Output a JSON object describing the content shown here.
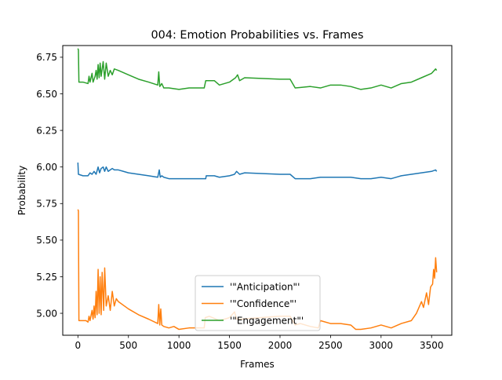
{
  "chart_data": {
    "type": "line",
    "title": "004: Emotion Probabilities vs. Frames",
    "xlabel": "Frames",
    "ylabel": "Probability",
    "xlim": [
      -150,
      3700
    ],
    "ylim": [
      4.85,
      6.83
    ],
    "x_ticks": [
      0,
      500,
      1000,
      1500,
      2000,
      2500,
      3000,
      3500
    ],
    "x_tick_labels": [
      "0",
      "500",
      "1000",
      "1500",
      "2000",
      "2500",
      "3000",
      "3500"
    ],
    "y_ticks": [
      5.0,
      5.25,
      5.5,
      5.75,
      6.0,
      6.25,
      6.5,
      6.75
    ],
    "y_tick_labels": [
      "5.00",
      "5.25",
      "5.50",
      "5.75",
      "6.00",
      "6.25",
      "6.50",
      "6.75"
    ],
    "grid": false,
    "legend": {
      "position": "lower center"
    },
    "series": [
      {
        "name": "'\"Anticipation\"'",
        "color": "#1f77b4",
        "points": [
          [
            0,
            6.03
          ],
          [
            5,
            5.95
          ],
          [
            50,
            5.94
          ],
          [
            100,
            5.94
          ],
          [
            120,
            5.96
          ],
          [
            140,
            5.95
          ],
          [
            160,
            5.97
          ],
          [
            180,
            5.95
          ],
          [
            200,
            6.0
          ],
          [
            215,
            5.96
          ],
          [
            230,
            5.99
          ],
          [
            250,
            6.0
          ],
          [
            265,
            5.97
          ],
          [
            280,
            6.0
          ],
          [
            300,
            5.97
          ],
          [
            320,
            5.98
          ],
          [
            340,
            5.99
          ],
          [
            360,
            5.98
          ],
          [
            400,
            5.98
          ],
          [
            450,
            5.97
          ],
          [
            500,
            5.96
          ],
          [
            600,
            5.95
          ],
          [
            700,
            5.94
          ],
          [
            790,
            5.93
          ],
          [
            805,
            5.98
          ],
          [
            815,
            5.93
          ],
          [
            830,
            5.94
          ],
          [
            850,
            5.93
          ],
          [
            900,
            5.92
          ],
          [
            1000,
            5.92
          ],
          [
            1100,
            5.92
          ],
          [
            1265,
            5.92
          ],
          [
            1270,
            5.94
          ],
          [
            1350,
            5.94
          ],
          [
            1400,
            5.93
          ],
          [
            1500,
            5.94
          ],
          [
            1550,
            5.95
          ],
          [
            1570,
            5.97
          ],
          [
            1600,
            5.95
          ],
          [
            1650,
            5.96
          ],
          [
            2000,
            5.95
          ],
          [
            2100,
            5.95
          ],
          [
            2150,
            5.92
          ],
          [
            2300,
            5.92
          ],
          [
            2400,
            5.93
          ],
          [
            2500,
            5.93
          ],
          [
            2700,
            5.93
          ],
          [
            2800,
            5.92
          ],
          [
            2900,
            5.92
          ],
          [
            3000,
            5.93
          ],
          [
            3100,
            5.92
          ],
          [
            3200,
            5.94
          ],
          [
            3300,
            5.95
          ],
          [
            3400,
            5.96
          ],
          [
            3500,
            5.97
          ],
          [
            3540,
            5.98
          ],
          [
            3550,
            5.97
          ]
        ]
      },
      {
        "name": "'\"Confidence\"'",
        "color": "#ff7f0e",
        "points": [
          [
            0,
            5.71
          ],
          [
            5,
            5.7
          ],
          [
            10,
            4.95
          ],
          [
            50,
            4.95
          ],
          [
            80,
            4.95
          ],
          [
            100,
            4.94
          ],
          [
            110,
            4.98
          ],
          [
            120,
            4.95
          ],
          [
            140,
            5.02
          ],
          [
            150,
            4.96
          ],
          [
            160,
            5.05
          ],
          [
            170,
            4.97
          ],
          [
            180,
            5.15
          ],
          [
            190,
            4.99
          ],
          [
            200,
            5.3
          ],
          [
            210,
            5.0
          ],
          [
            220,
            5.25
          ],
          [
            230,
            4.99
          ],
          [
            240,
            5.28
          ],
          [
            255,
            5.02
          ],
          [
            265,
            5.31
          ],
          [
            280,
            5.05
          ],
          [
            300,
            5.12
          ],
          [
            320,
            5.02
          ],
          [
            340,
            5.15
          ],
          [
            360,
            5.05
          ],
          [
            380,
            5.1
          ],
          [
            400,
            5.08
          ],
          [
            500,
            5.03
          ],
          [
            600,
            4.99
          ],
          [
            700,
            4.96
          ],
          [
            790,
            4.93
          ],
          [
            800,
            5.06
          ],
          [
            810,
            4.92
          ],
          [
            820,
            5.03
          ],
          [
            830,
            4.92
          ],
          [
            850,
            4.91
          ],
          [
            900,
            4.9
          ],
          [
            950,
            4.91
          ],
          [
            1000,
            4.89
          ],
          [
            1100,
            4.9
          ],
          [
            1250,
            4.9
          ],
          [
            1260,
            4.97
          ],
          [
            1300,
            4.98
          ],
          [
            1400,
            4.95
          ],
          [
            1500,
            4.97
          ],
          [
            1550,
            5.01
          ],
          [
            1570,
            4.96
          ],
          [
            1600,
            4.96
          ],
          [
            2000,
            4.98
          ],
          [
            2100,
            4.98
          ],
          [
            2150,
            4.92
          ],
          [
            2200,
            4.93
          ],
          [
            2300,
            4.91
          ],
          [
            2380,
            4.9
          ],
          [
            2400,
            4.95
          ],
          [
            2500,
            4.93
          ],
          [
            2600,
            4.93
          ],
          [
            2700,
            4.92
          ],
          [
            2750,
            4.89
          ],
          [
            2800,
            4.89
          ],
          [
            2900,
            4.9
          ],
          [
            3000,
            4.92
          ],
          [
            3100,
            4.9
          ],
          [
            3200,
            4.93
          ],
          [
            3300,
            4.95
          ],
          [
            3350,
            5.0
          ],
          [
            3400,
            5.08
          ],
          [
            3420,
            5.04
          ],
          [
            3450,
            5.14
          ],
          [
            3470,
            5.06
          ],
          [
            3490,
            5.18
          ],
          [
            3510,
            5.2
          ],
          [
            3520,
            5.3
          ],
          [
            3530,
            5.24
          ],
          [
            3540,
            5.38
          ],
          [
            3550,
            5.28
          ]
        ]
      },
      {
        "name": "'\"Engagement\"'",
        "color": "#2ca02c",
        "points": [
          [
            0,
            6.81
          ],
          [
            5,
            6.8
          ],
          [
            10,
            6.58
          ],
          [
            50,
            6.58
          ],
          [
            100,
            6.57
          ],
          [
            110,
            6.62
          ],
          [
            120,
            6.58
          ],
          [
            140,
            6.64
          ],
          [
            150,
            6.58
          ],
          [
            170,
            6.62
          ],
          [
            180,
            6.66
          ],
          [
            190,
            6.6
          ],
          [
            200,
            6.7
          ],
          [
            210,
            6.61
          ],
          [
            220,
            6.71
          ],
          [
            230,
            6.62
          ],
          [
            250,
            6.72
          ],
          [
            265,
            6.6
          ],
          [
            280,
            6.71
          ],
          [
            300,
            6.62
          ],
          [
            320,
            6.66
          ],
          [
            340,
            6.63
          ],
          [
            360,
            6.67
          ],
          [
            400,
            6.66
          ],
          [
            500,
            6.63
          ],
          [
            600,
            6.6
          ],
          [
            700,
            6.58
          ],
          [
            790,
            6.56
          ],
          [
            800,
            6.65
          ],
          [
            810,
            6.55
          ],
          [
            830,
            6.57
          ],
          [
            850,
            6.54
          ],
          [
            900,
            6.54
          ],
          [
            1000,
            6.53
          ],
          [
            1100,
            6.54
          ],
          [
            1250,
            6.54
          ],
          [
            1265,
            6.59
          ],
          [
            1350,
            6.59
          ],
          [
            1400,
            6.56
          ],
          [
            1500,
            6.58
          ],
          [
            1560,
            6.61
          ],
          [
            1580,
            6.63
          ],
          [
            1600,
            6.59
          ],
          [
            1650,
            6.61
          ],
          [
            2000,
            6.6
          ],
          [
            2100,
            6.6
          ],
          [
            2150,
            6.54
          ],
          [
            2300,
            6.55
          ],
          [
            2400,
            6.54
          ],
          [
            2500,
            6.56
          ],
          [
            2600,
            6.56
          ],
          [
            2700,
            6.55
          ],
          [
            2800,
            6.53
          ],
          [
            2900,
            6.54
          ],
          [
            3000,
            6.56
          ],
          [
            3100,
            6.54
          ],
          [
            3200,
            6.57
          ],
          [
            3300,
            6.58
          ],
          [
            3400,
            6.61
          ],
          [
            3500,
            6.64
          ],
          [
            3540,
            6.67
          ],
          [
            3550,
            6.66
          ]
        ]
      }
    ]
  }
}
